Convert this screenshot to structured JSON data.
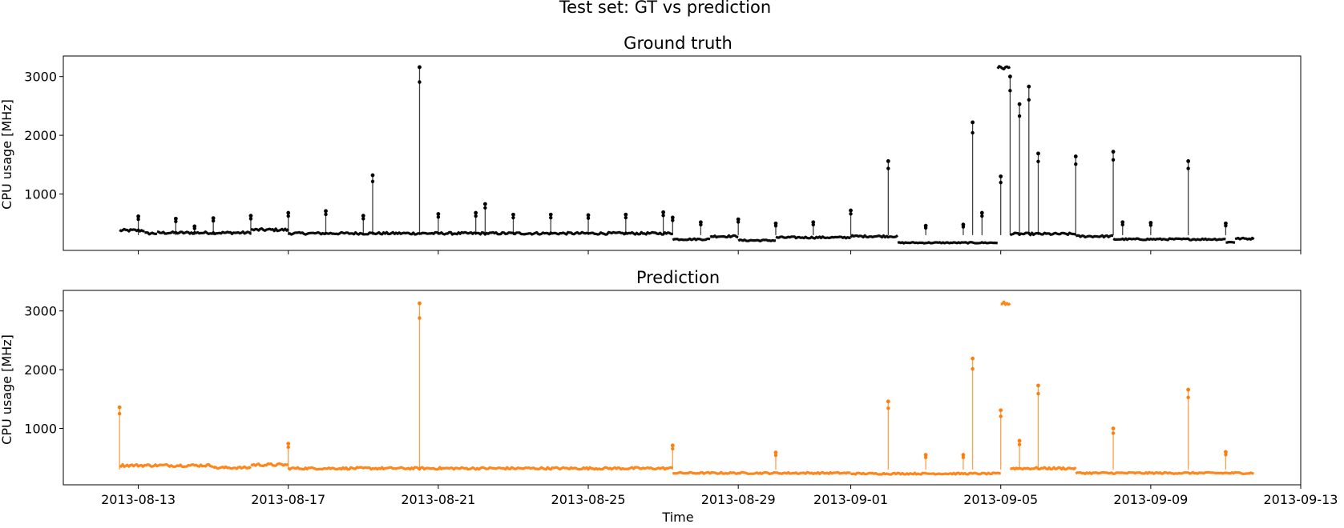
{
  "figure": {
    "suptitle": "Test set: GT vs prediction"
  },
  "chart_data": [
    {
      "type": "line",
      "title": "Ground truth",
      "xlabel": "",
      "ylabel": "CPU usage [MHz]",
      "x_ticks": [
        "2013-08-13",
        "2013-08-17",
        "2013-08-21",
        "2013-08-25",
        "2013-08-29",
        "2013-09-01",
        "2013-09-05",
        "2013-09-09",
        "2013-09-13"
      ],
      "x_tick_labels_visible": false,
      "xlim": [
        "2013-08-11 00:00",
        "2013-09-13 00:00"
      ],
      "y_ticks": [
        1000,
        2000,
        3000
      ],
      "ylim": [
        40,
        3350
      ],
      "grid": false,
      "series": [
        {
          "color": "#000000",
          "marker": "dot",
          "baseline_segments": [
            [
              "2013-08-12 12:00",
              "2013-08-13 04:00",
              380
            ],
            [
              "2013-08-13 04:00",
              "2013-08-13 12:00",
              330
            ],
            [
              "2013-08-13 12:00",
              "2013-08-16 00:00",
              340
            ],
            [
              "2013-08-16 00:00",
              "2013-08-17 00:00",
              390
            ],
            [
              "2013-08-17 00:00",
              "2013-08-27 06:00",
              330
            ],
            [
              "2013-08-27 06:00",
              "2013-08-28 06:00",
              230
            ],
            [
              "2013-08-28 06:00",
              "2013-08-29 00:00",
              280
            ],
            [
              "2013-08-29 00:00",
              "2013-08-30 00:00",
              210
            ],
            [
              "2013-08-30 00:00",
              "2013-09-01 00:00",
              260
            ],
            [
              "2013-09-01 00:00",
              "2013-09-02 06:00",
              280
            ],
            [
              "2013-09-02 06:00",
              "2013-09-04 22:00",
              170
            ],
            [
              "2013-09-04 22:00",
              "2013-09-05 06:00",
              3150
            ],
            [
              "2013-09-05 06:00",
              "2013-09-07 00:00",
              320
            ],
            [
              "2013-09-07 00:00",
              "2013-09-08 00:00",
              280
            ],
            [
              "2013-09-08 00:00",
              "2013-09-11 00:00",
              230
            ],
            [
              "2013-09-11 00:00",
              "2013-09-11 06:00",
              180
            ],
            [
              "2013-09-11 06:00",
              "2013-09-11 18:00",
              240
            ]
          ],
          "spikes": [
            [
              "2013-08-13 00:00",
              620
            ],
            [
              "2013-08-14 00:00",
              580
            ],
            [
              "2013-08-14 12:00",
              450
            ],
            [
              "2013-08-15 00:00",
              590
            ],
            [
              "2013-08-16 00:00",
              630
            ],
            [
              "2013-08-17 00:00",
              680
            ],
            [
              "2013-08-18 00:00",
              710
            ],
            [
              "2013-08-19 00:00",
              630
            ],
            [
              "2013-08-19 06:00",
              1320
            ],
            [
              "2013-08-20 12:00",
              3160
            ],
            [
              "2013-08-21 00:00",
              660
            ],
            [
              "2013-08-22 00:00",
              680
            ],
            [
              "2013-08-22 06:00",
              830
            ],
            [
              "2013-08-23 00:00",
              650
            ],
            [
              "2013-08-24 00:00",
              650
            ],
            [
              "2013-08-25 00:00",
              640
            ],
            [
              "2013-08-26 00:00",
              650
            ],
            [
              "2013-08-27 00:00",
              690
            ],
            [
              "2013-08-27 06:00",
              600
            ],
            [
              "2013-08-28 00:00",
              520
            ],
            [
              "2013-08-29 00:00",
              570
            ],
            [
              "2013-08-30 00:00",
              500
            ],
            [
              "2013-08-31 00:00",
              520
            ],
            [
              "2013-09-01 00:00",
              720
            ],
            [
              "2013-09-02 00:00",
              1560
            ],
            [
              "2013-09-03 00:00",
              460
            ],
            [
              "2013-09-04 00:00",
              480
            ],
            [
              "2013-09-04 06:00",
              2220
            ],
            [
              "2013-09-04 12:00",
              680
            ],
            [
              "2013-09-05 00:00",
              1300
            ],
            [
              "2013-09-05 06:00",
              3000
            ],
            [
              "2013-09-05 12:00",
              2530
            ],
            [
              "2013-09-05 18:00",
              2830
            ],
            [
              "2013-09-06 00:00",
              1690
            ],
            [
              "2013-09-07 00:00",
              1640
            ],
            [
              "2013-09-08 00:00",
              1720
            ],
            [
              "2013-09-08 06:00",
              520
            ],
            [
              "2013-09-09 00:00",
              510
            ],
            [
              "2013-09-10 00:00",
              1560
            ],
            [
              "2013-09-11 00:00",
              500
            ]
          ]
        }
      ]
    },
    {
      "type": "line",
      "title": "Prediction",
      "xlabel": "Time",
      "ylabel": "CPU usage [MHz]",
      "x_ticks": [
        "2013-08-13",
        "2013-08-17",
        "2013-08-21",
        "2013-08-25",
        "2013-08-29",
        "2013-09-01",
        "2013-09-05",
        "2013-09-09",
        "2013-09-13"
      ],
      "x_tick_labels_visible": true,
      "xlim": [
        "2013-08-11 00:00",
        "2013-09-13 00:00"
      ],
      "y_ticks": [
        1000,
        2000,
        3000
      ],
      "ylim": [
        40,
        3350
      ],
      "grid": false,
      "series": [
        {
          "color": "#ff7f0e",
          "marker": "dot",
          "baseline_segments": [
            [
              "2013-08-12 12:00",
              "2013-08-15 00:00",
              370
            ],
            [
              "2013-08-15 00:00",
              "2013-08-16 00:00",
              330
            ],
            [
              "2013-08-16 00:00",
              "2013-08-17 00:00",
              380
            ],
            [
              "2013-08-17 00:00",
              "2013-08-27 06:00",
              320
            ],
            [
              "2013-08-27 06:00",
              "2013-09-01 00:00",
              240
            ],
            [
              "2013-09-01 00:00",
              "2013-09-05 00:00",
              230
            ],
            [
              "2013-09-05 00:00",
              "2013-09-05 06:00",
              3130
            ],
            [
              "2013-09-05 06:00",
              "2013-09-07 00:00",
              320
            ],
            [
              "2013-09-07 00:00",
              "2013-09-11 18:00",
              240
            ]
          ],
          "spikes": [
            [
              "2013-08-12 12:00",
              1360
            ],
            [
              "2013-08-17 00:00",
              740
            ],
            [
              "2013-08-20 12:00",
              3130
            ],
            [
              "2013-08-27 06:00",
              710
            ],
            [
              "2013-08-30 00:00",
              590
            ],
            [
              "2013-09-02 00:00",
              1460
            ],
            [
              "2013-09-03 00:00",
              550
            ],
            [
              "2013-09-04 00:00",
              550
            ],
            [
              "2013-09-04 06:00",
              2190
            ],
            [
              "2013-09-05 00:00",
              1310
            ],
            [
              "2013-09-05 12:00",
              790
            ],
            [
              "2013-09-06 00:00",
              1730
            ],
            [
              "2013-09-08 00:00",
              1000
            ],
            [
              "2013-09-10 00:00",
              1660
            ],
            [
              "2013-09-11 00:00",
              600
            ]
          ]
        }
      ]
    }
  ]
}
